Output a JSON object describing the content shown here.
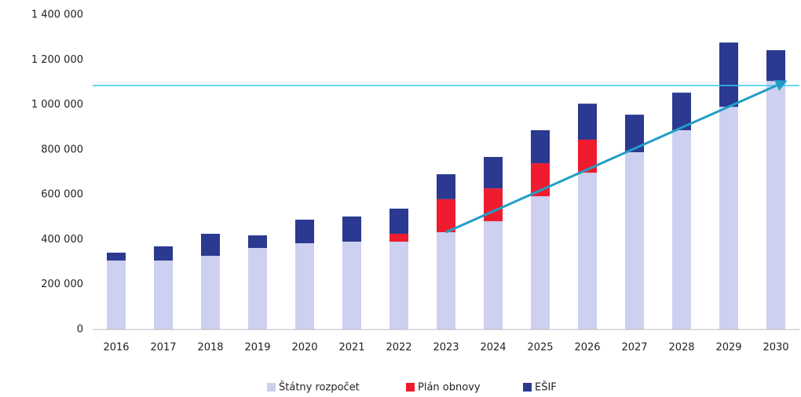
{
  "chart_data": {
    "type": "stacked-bar",
    "categories": [
      "2016",
      "2017",
      "2018",
      "2019",
      "2020",
      "2021",
      "2022",
      "2023",
      "2024",
      "2025",
      "2026",
      "2027",
      "2028",
      "2029",
      "2030"
    ],
    "series": [
      {
        "name": "Štátny rozpočet",
        "color": "#cdd0f0",
        "values": [
          307000,
          307000,
          328000,
          363000,
          384000,
          391000,
          391000,
          433000,
          482000,
          593000,
          698000,
          789000,
          887000,
          991000,
          1106000
        ]
      },
      {
        "name": "Plán obnovy",
        "color": "#ee1c2e",
        "values": [
          0,
          0,
          0,
          0,
          0,
          0,
          35000,
          147000,
          146000,
          147000,
          147000,
          0,
          0,
          0,
          0
        ]
      },
      {
        "name": "EŠIF",
        "color": "#2b3990",
        "values": [
          35000,
          63000,
          98000,
          56000,
          105000,
          112000,
          112000,
          111000,
          140000,
          147000,
          160000,
          167000,
          167000,
          286000,
          137000
        ]
      }
    ],
    "ylim": [
      0,
      1400000
    ],
    "yticks": [
      0,
      {
        "value": 200000,
        "label": "200 000"
      },
      {
        "value": 400000,
        "label": "400 000"
      },
      {
        "value": 600000,
        "label": "600 000"
      },
      {
        "value": 800000,
        "label": "800 000"
      },
      {
        "value": 1000000,
        "label": "1 000 000"
      },
      {
        "value": 1200000,
        "label": "1 200 000"
      },
      {
        "value": 1400000,
        "label": "1 400 000"
      }
    ],
    "grid": false,
    "legend": "bottom"
  }
}
